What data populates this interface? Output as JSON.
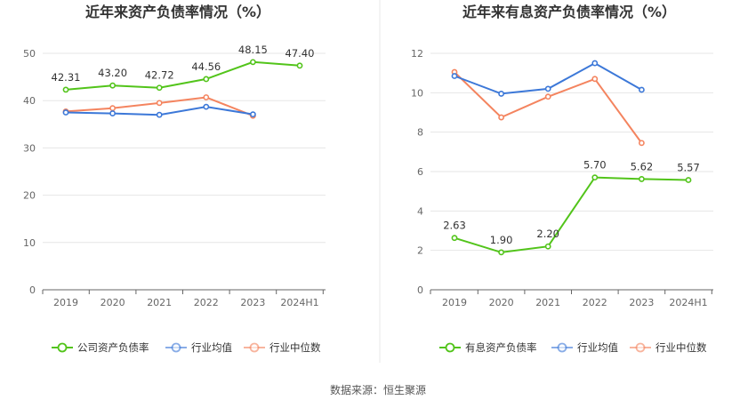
{
  "source": "数据来源：恒生聚源",
  "chart_data": [
    {
      "type": "line",
      "title": "近年来资产负债率情况（%）",
      "categories": [
        "2019",
        "2020",
        "2021",
        "2022",
        "2023",
        "2024H1"
      ],
      "ylim": [
        0,
        50
      ],
      "yticks": [
        0,
        10,
        20,
        30,
        40,
        50
      ],
      "series": [
        {
          "name": "公司资产负债率",
          "color": "#52c41a",
          "values": [
            42.31,
            43.2,
            42.72,
            44.56,
            48.15,
            47.4
          ],
          "labels": [
            "42.31",
            "43.20",
            "42.72",
            "44.56",
            "48.15",
            "47.40"
          ]
        },
        {
          "name": "行业均值",
          "color": "#3c78d8",
          "values": [
            37.5,
            37.3,
            37.0,
            38.7,
            37.1,
            null
          ]
        },
        {
          "name": "行业中位数",
          "color": "#f4845f",
          "values": [
            37.7,
            38.4,
            39.5,
            40.7,
            36.8,
            null
          ]
        }
      ]
    },
    {
      "type": "line",
      "title": "近年来有息资产负债率情况（%）",
      "categories": [
        "2019",
        "2020",
        "2021",
        "2022",
        "2023",
        "2024H1"
      ],
      "ylim": [
        0,
        12
      ],
      "yticks": [
        0,
        2,
        4,
        6,
        8,
        10,
        12
      ],
      "series": [
        {
          "name": "有息资产负债率",
          "color": "#52c41a",
          "values": [
            2.63,
            1.9,
            2.2,
            5.7,
            5.62,
            5.57
          ],
          "labels": [
            "2.63",
            "1.90",
            "2.20",
            "5.70",
            "5.62",
            "5.57"
          ]
        },
        {
          "name": "行业均值",
          "color": "#3c78d8",
          "values": [
            10.85,
            9.95,
            10.2,
            11.5,
            10.15,
            null
          ]
        },
        {
          "name": "行业中位数",
          "color": "#f4845f",
          "values": [
            11.05,
            8.75,
            9.8,
            10.7,
            7.45,
            null
          ]
        }
      ]
    }
  ]
}
